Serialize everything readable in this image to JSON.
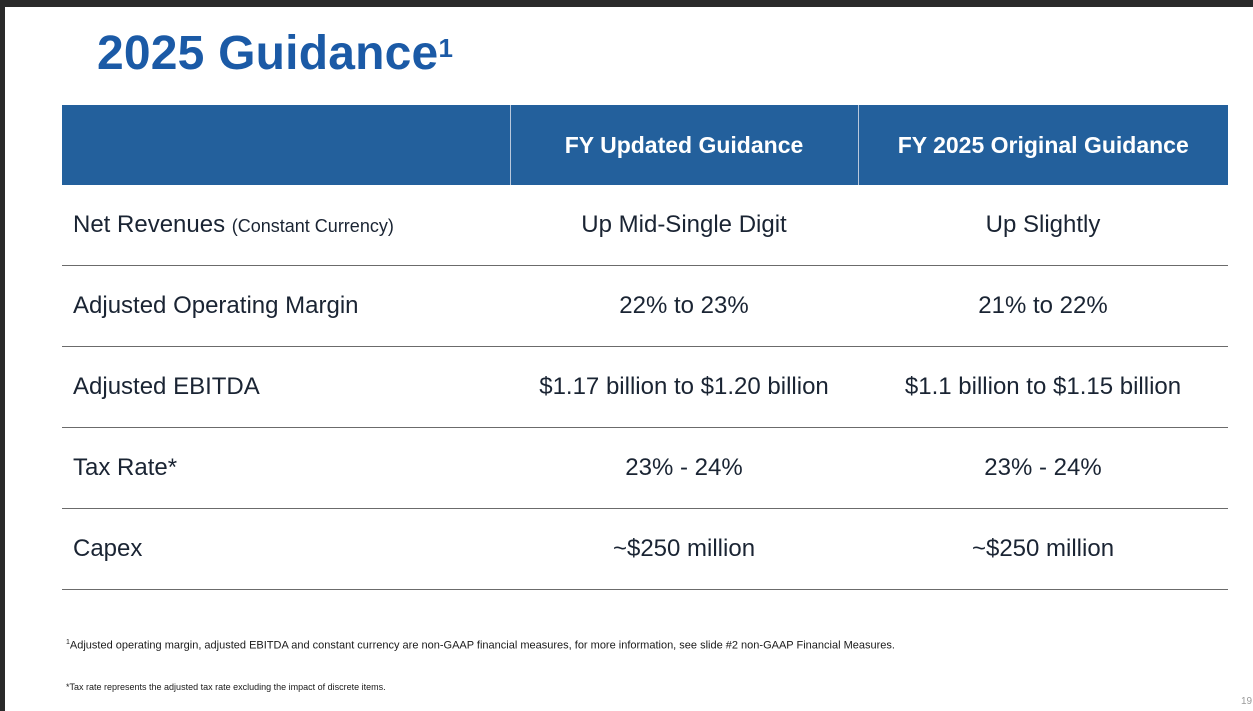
{
  "title": {
    "text": "2025 Guidance",
    "superscript": "1"
  },
  "colors": {
    "title_blue": "#1b5aa6",
    "header_blue": "#23609c",
    "header_text": "#ffffff",
    "body_text": "#1a2433",
    "row_divider": "#6b6b6b"
  },
  "table": {
    "headers": [
      "",
      "FY Updated Guidance",
      "FY 2025 Original Guidance"
    ],
    "rows": [
      {
        "label": "Net Revenues",
        "label_sub": "(Constant Currency)",
        "updated": "Up Mid-Single Digit",
        "original": "Up Slightly"
      },
      {
        "label": "Adjusted Operating Margin",
        "label_sub": "",
        "updated": "22% to 23%",
        "original": "21% to 22%"
      },
      {
        "label": "Adjusted EBITDA",
        "label_sub": "",
        "updated": "$1.17 billion to $1.20 billion",
        "original": "$1.1 billion to $1.15 billion"
      },
      {
        "label": "Tax Rate*",
        "label_sub": "",
        "updated": "23% - 24%",
        "original": "23% - 24%"
      },
      {
        "label": "Capex",
        "label_sub": "",
        "updated": "~$250 million",
        "original": "~$250 million"
      }
    ]
  },
  "footnotes": {
    "note1_marker": "1",
    "note1_text": "Adjusted operating margin, adjusted EBITDA and constant currency are non-GAAP financial measures, for more information, see slide #2 non-GAAP Financial Measures.",
    "note2_text": "*Tax rate represents the adjusted tax rate excluding the impact of discrete items."
  },
  "page_number": "19"
}
